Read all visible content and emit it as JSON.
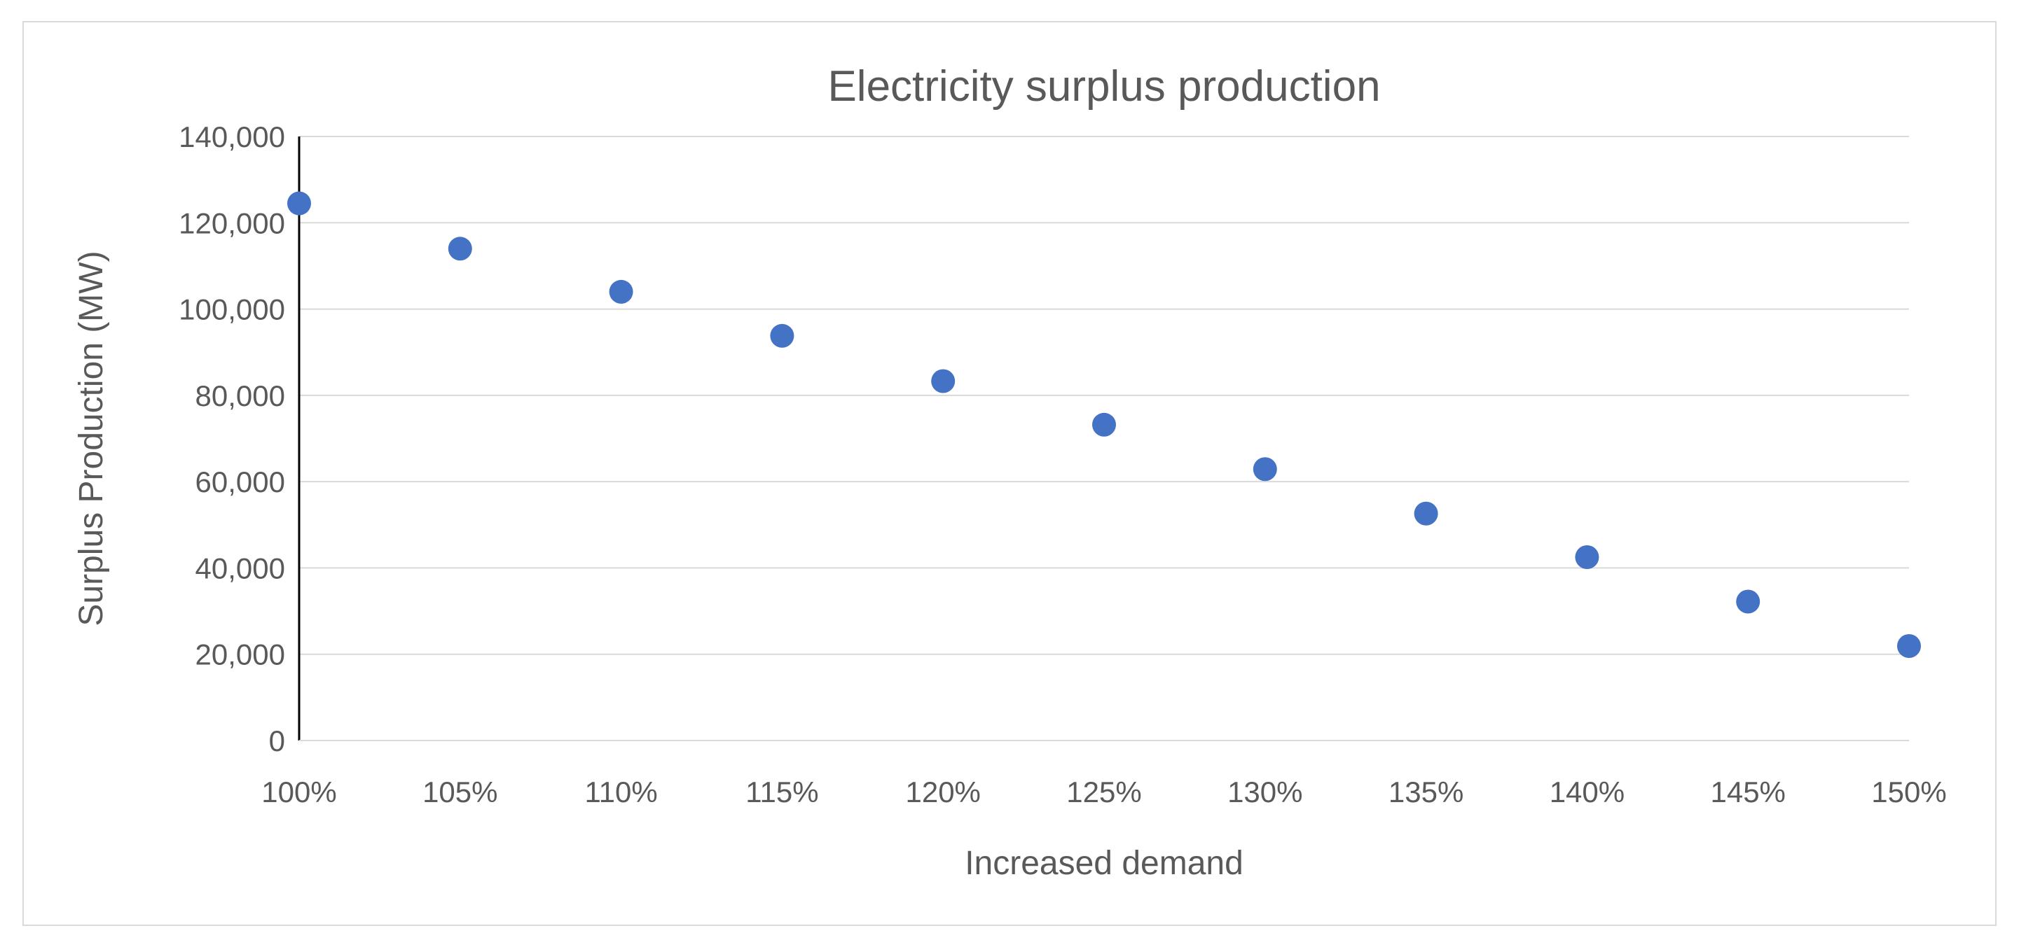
{
  "chart_data": {
    "type": "scatter",
    "title": "Electricity surplus production",
    "xlabel": "Increased demand",
    "ylabel": "Surplus Production (MW)",
    "x_tick_labels": [
      "100%",
      "105%",
      "110%",
      "115%",
      "120%",
      "125%",
      "130%",
      "135%",
      "140%",
      "145%",
      "150%"
    ],
    "y_tick_labels": [
      "0",
      "20,000",
      "40,000",
      "60,000",
      "80,000",
      "100,000",
      "120,000",
      "140,000"
    ],
    "ylim": [
      0,
      140000
    ],
    "series": [
      {
        "name": "Surplus Production",
        "color": "#4472C4",
        "x": [
          100,
          105,
          110,
          115,
          120,
          125,
          130,
          135,
          140,
          145,
          150
        ],
        "values": [
          124500,
          114000,
          104000,
          93800,
          83300,
          73200,
          62900,
          52600,
          42500,
          32200,
          21900
        ]
      }
    ],
    "grid": true
  }
}
